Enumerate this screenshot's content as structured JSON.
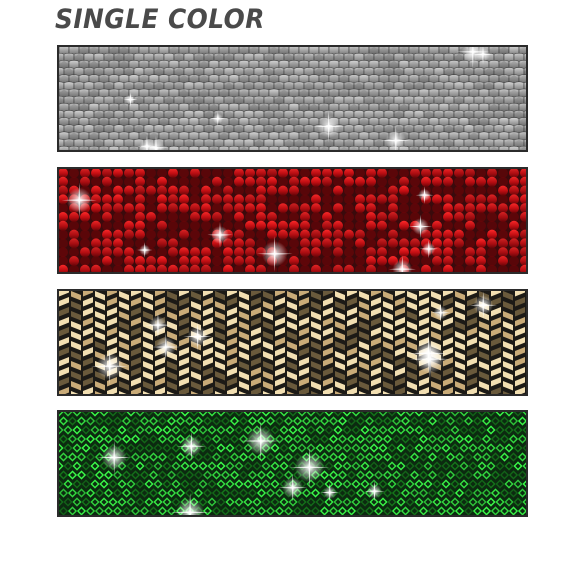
{
  "title": "SINGLE COLOR",
  "swatches": [
    {
      "id": "silver",
      "pattern": "scales",
      "base": "#3a3a3a",
      "light": "#d8d8d8",
      "mid": "#9a9a9a",
      "dark": "#5c5c5c"
    },
    {
      "id": "red",
      "pattern": "sequins",
      "base": "#3a0a0c",
      "light": "#ff2a2a",
      "mid": "#c40d12",
      "dark": "#6a0508"
    },
    {
      "id": "gold",
      "pattern": "chevron",
      "base": "#1c1a16",
      "light": "#f2dfb2",
      "mid": "#c9ab78",
      "dark": "#6a5a3c"
    },
    {
      "id": "green",
      "pattern": "diamonds",
      "base": "#0c2a10",
      "light": "#3cff4a",
      "mid": "#1aa021",
      "dark": "#0a5a10"
    }
  ]
}
